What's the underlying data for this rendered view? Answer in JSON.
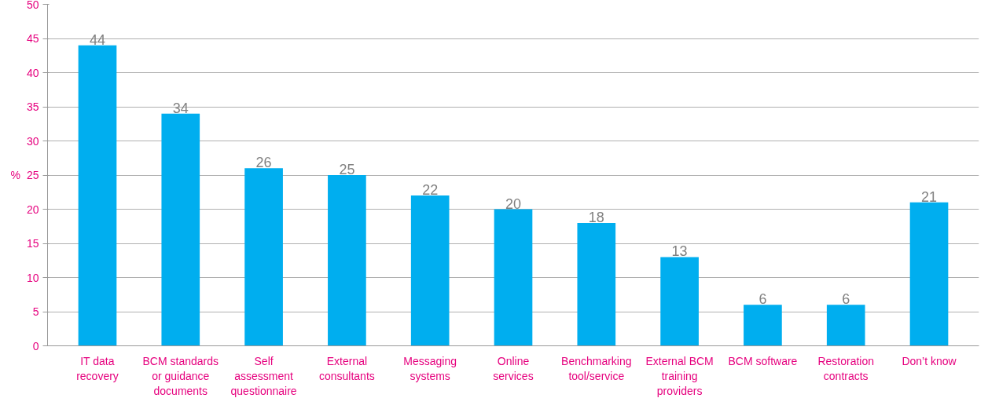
{
  "chart_data": {
    "type": "bar",
    "ylabel": "%",
    "categories": [
      "IT data recovery",
      "BCM standards or guidance documents",
      "Self assessment questionnaire",
      "External consultants",
      "Messaging systems",
      "Online services",
      "Benchmarking tool/service",
      "External BCM training providers",
      "BCM software",
      "Restoration contracts",
      "Don’t know"
    ],
    "values": [
      44,
      34,
      26,
      25,
      22,
      20,
      18,
      13,
      6,
      6,
      21
    ],
    "color": "#00aeef",
    "data_labels": true,
    "grid": "y",
    "ylim": [
      0,
      50
    ],
    "yticks": [
      0,
      5,
      10,
      15,
      20,
      25,
      30,
      35,
      40,
      45,
      50
    ]
  }
}
